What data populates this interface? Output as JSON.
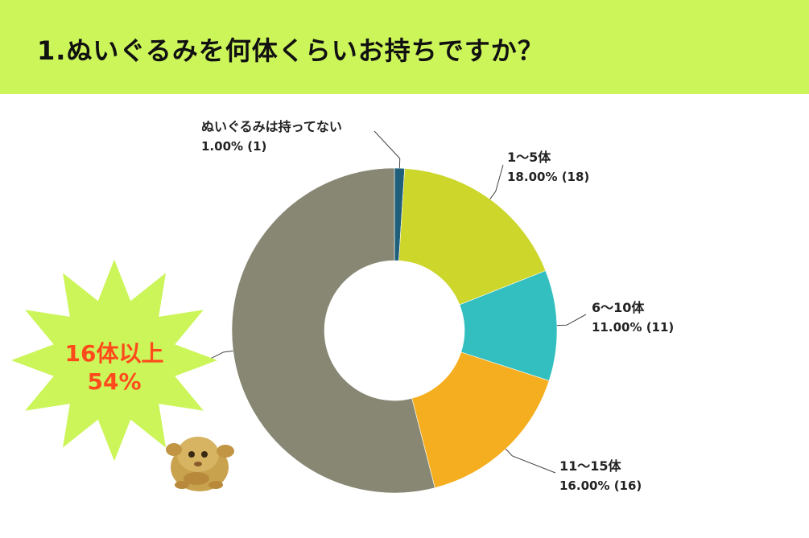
{
  "header": {
    "title": "1.ぬいぐるみを何体くらいお持ちですか？",
    "background": "#ccf55a"
  },
  "chart_data": {
    "type": "pie",
    "variant": "donut",
    "categories": [
      "ぬいぐるみは持ってない",
      "1〜5体",
      "6〜10体",
      "11〜15体",
      "16体以上"
    ],
    "series": [
      {
        "values": [
          1,
          18,
          11,
          16,
          54
        ],
        "percent_labels": [
          "1.00%",
          "18.00%",
          "11.00%",
          "16.00%",
          ""
        ],
        "count_labels": [
          "(1)",
          "(18)",
          "(11)",
          "(16)",
          ""
        ],
        "colors": [
          "#1f5f7a",
          "#cdd62b",
          "#33bfc0",
          "#f5ae1f",
          "#878774"
        ]
      }
    ],
    "start_angle": 0,
    "direction": "clockwise"
  },
  "callout": {
    "line1": "16体以上",
    "line2": "54%",
    "text_color": "#ff4a1c",
    "burst_color": "#ccf55a"
  },
  "decoration": {
    "icon": "plush-toy-icon"
  }
}
